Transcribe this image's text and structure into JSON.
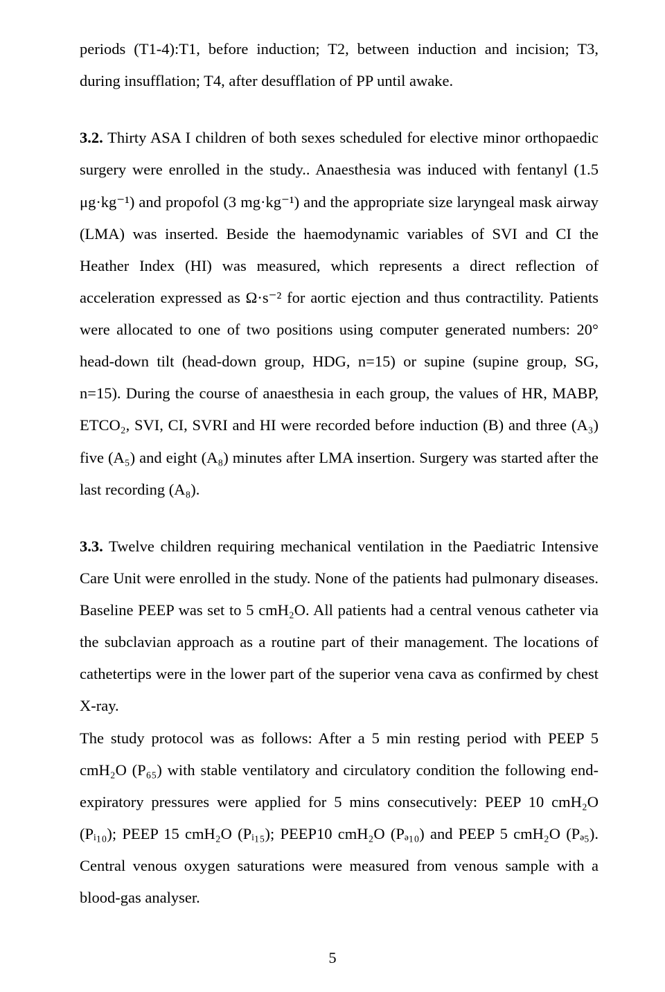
{
  "page": {
    "number": "5",
    "text_color": "#000000",
    "background": "#ffffff",
    "font_family": "Times New Roman",
    "body_font_size_pt": 12,
    "line_spacing": 2.0,
    "alignment": "justify"
  },
  "paragraphs": {
    "p1": "periods (T1-4):T1, before induction; T2, between induction and incision; T3, during insufflation; T4, after desufflation of PP until awake.",
    "p2_heading_num": "3.2.",
    "p2_body": " Thirty ASA I children of both sexes scheduled for elective minor orthopaedic surgery were enrolled in the study.. Anaesthesia was induced with fentanyl (1.5 μg·kg⁻¹) and propofol (3 mg·kg⁻¹) and the appropriate size laryngeal mask airway (LMA) was inserted. Beside the haemodynamic variables of SVI and CI the Heather Index (HI) was measured, which represents a direct reflection of acceleration expressed as Ω·s⁻² for aortic ejection and thus contractility. Patients were allocated to one of two positions using computer generated numbers: 20° head-down tilt (head-down group, HDG, n=15) or supine (supine group, SG, n=15). During the course of anaesthesia in each group, the values of HR, MABP, ETCO₂, SVI, CI, SVRI and HI were recorded before induction (B) and  three  (A₃) five (A₅) and eight (A₈) minutes after LMA insertion. Surgery was started after the last recording (A₈).",
    "p3_heading_num": "3.3.",
    "p3_body": " Twelve children requiring mechanical ventilation in the Paediatric Intensive Care Unit were enrolled in the study. None of the patients had pulmonary diseases. Baseline PEEP was set to 5 cmH₂O. All patients had a central venous catheter via the subclavian approach as a routine part of their management. The locations of cathetertips were in the lower part of the superior vena cava as confirmed by chest X-ray.",
    "p4": "The study protocol was as follows: After a 5 min resting period with PEEP 5 cmH₂O (P₆₅) with stable ventilatory and circulatory condition the following end-expiratory pressures were applied for 5 mins consecutively: PEEP 10 cmH₂O (Pᵢ₁₀); PEEP 15 cmH₂O (Pᵢ₁₅); PEEP10 cmH₂O (Pₔ₁₀) and PEEP 5 cmH₂O (Pₔ₅). Central venous oxygen saturations were measured from venous sample with a blood-gas analyser."
  }
}
